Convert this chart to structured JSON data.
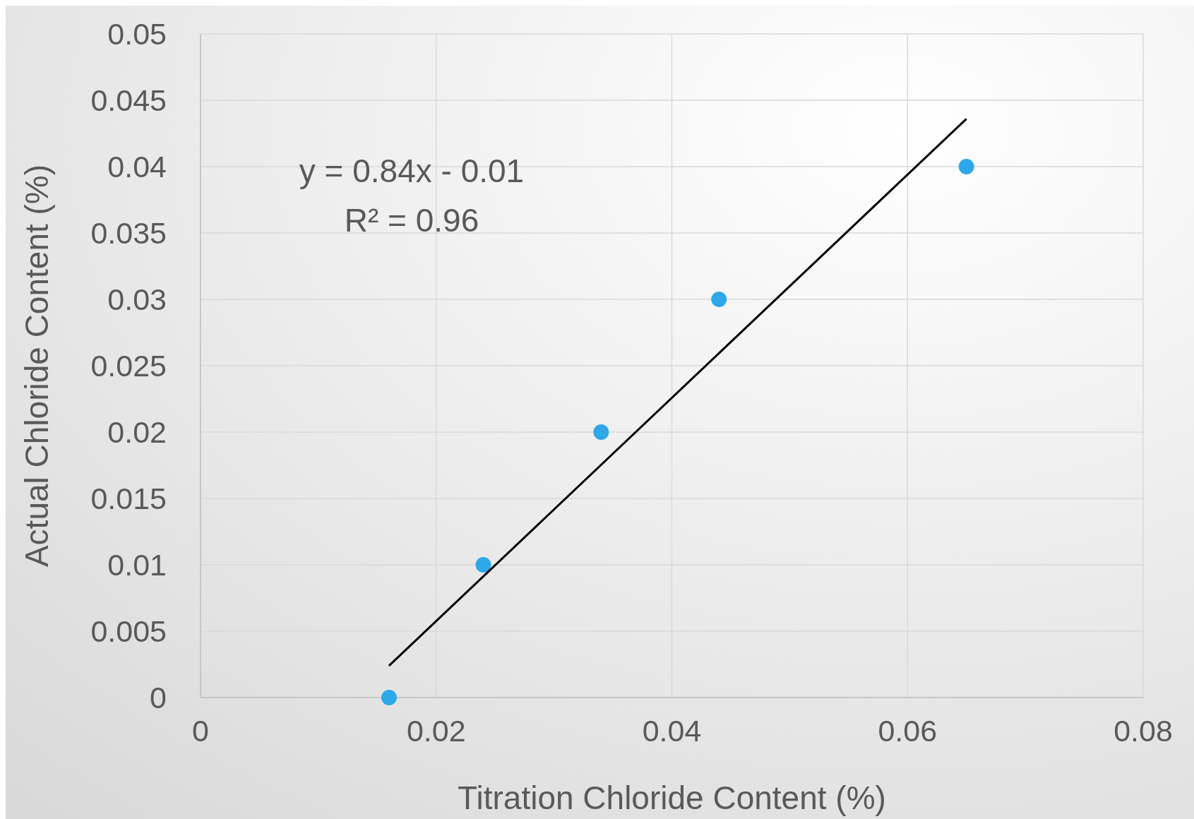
{
  "chart_data": {
    "type": "scatter",
    "xlabel": "Titration Chloride Content (%)",
    "ylabel": "Actual Chloride Content (%)",
    "annotations": [
      "y = 0.84x - 0.01",
      "R² = 0.96"
    ],
    "series": [
      {
        "marker": "circle",
        "color": "#2ea8e8",
        "x": [
          0.016,
          0.024,
          0.034,
          0.044,
          0.065
        ],
        "values": [
          0,
          0.01,
          0.02,
          0.03,
          0.04
        ]
      },
      {
        "type": "line",
        "color": "#000000",
        "x": [
          0.016,
          0.065
        ],
        "values": [
          0.0024,
          0.0436
        ]
      }
    ],
    "xlim": [
      0,
      0.08
    ],
    "xticks": [
      0,
      0.02,
      0.04,
      0.06,
      0.08
    ],
    "ylim": [
      0,
      0.05
    ],
    "yticks": [
      0,
      0.005,
      0.01,
      0.015,
      0.02,
      0.025,
      0.03,
      0.035,
      0.04,
      0.045,
      0.05
    ],
    "grid": true
  }
}
